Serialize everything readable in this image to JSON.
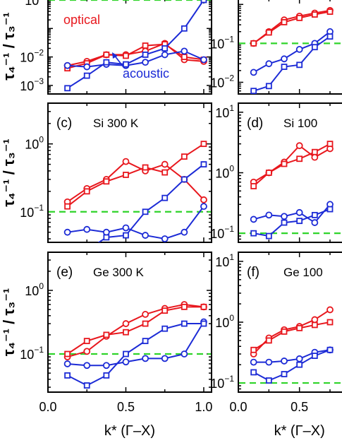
{
  "figure": {
    "x_axis_label": "k* (Γ–X)",
    "y_axis_label_main": "τ₄⁻¹ / τ₃⁻¹"
  },
  "chart_data": [
    {
      "panel": "a",
      "type": "line",
      "title": "",
      "ylabel": "τ₄⁻¹ / τ₃⁻¹",
      "xlim": [
        0.0,
        1.05
      ],
      "ylim_log10": [
        -3.3,
        0.05
      ],
      "yscale": "log",
      "y_tick_labels": [
        "10^-3",
        "10^-2",
        "10^0"
      ],
      "reference_line": 1.0,
      "annotations": [
        "optical",
        "acoustic"
      ],
      "series": [
        {
          "color": "#e8171d",
          "marker": "circle",
          "x": [
            0.125,
            0.25,
            0.375,
            0.5,
            0.625,
            0.75,
            0.875,
            1.0
          ],
          "y": [
            0.005,
            0.007,
            0.012,
            0.012,
            0.016,
            0.03,
            0.008,
            0.007
          ]
        },
        {
          "color": "#e8171d",
          "marker": "square",
          "x": [
            0.125,
            0.25,
            0.375,
            0.5,
            0.625,
            0.75,
            0.875,
            1.0
          ],
          "y": [
            0.004,
            0.006,
            0.012,
            0.011,
            0.025,
            0.028,
            0.01,
            0.008
          ]
        },
        {
          "color": "#1c2bd6",
          "marker": "circle",
          "x": [
            0.125,
            0.25,
            0.375,
            0.5,
            0.625,
            0.75,
            0.875,
            1.0
          ],
          "y": [
            0.005,
            0.0045,
            0.0055,
            0.005,
            0.0065,
            0.012,
            0.016,
            0.008
          ]
        },
        {
          "color": "#1c2bd6",
          "marker": "square",
          "x": [
            0.125,
            0.25,
            0.375,
            0.5,
            0.625,
            0.75,
            0.875,
            1.0
          ],
          "y": [
            0.0008,
            0.0022,
            0.0065,
            0.0055,
            0.012,
            0.02,
            0.1,
            1.0
          ]
        }
      ]
    },
    {
      "panel": "b",
      "type": "line",
      "title": "",
      "xlim": [
        0.0,
        1.05
      ],
      "ylim_log10": [
        -2.3,
        0.15
      ],
      "yscale": "log",
      "y_tick_labels": [
        "10^-2",
        "10^-1"
      ],
      "reference_line": 0.1,
      "series": [
        {
          "color": "#e8171d",
          "marker": "circle",
          "x": [
            0.125,
            0.25,
            0.375,
            0.5,
            0.625,
            0.75
          ],
          "y": [
            0.1,
            0.2,
            0.4,
            0.5,
            0.6,
            0.7
          ]
        },
        {
          "color": "#e8171d",
          "marker": "square",
          "x": [
            0.125,
            0.25,
            0.375,
            0.5,
            0.625,
            0.75
          ],
          "y": [
            0.1,
            0.19,
            0.35,
            0.45,
            0.55,
            0.65
          ]
        },
        {
          "color": "#1c2bd6",
          "marker": "circle",
          "x": [
            0.125,
            0.25,
            0.375,
            0.5,
            0.625,
            0.75
          ],
          "y": [
            0.018,
            0.03,
            0.04,
            0.07,
            0.1,
            0.2
          ]
        },
        {
          "color": "#1c2bd6",
          "marker": "square",
          "x": [
            0.125,
            0.25,
            0.375,
            0.5,
            0.625,
            0.75
          ],
          "y": [
            0.006,
            0.008,
            0.025,
            0.028,
            0.08,
            0.15
          ]
        }
      ]
    },
    {
      "panel": "c",
      "type": "line",
      "label": "(c)",
      "title": "Si 300 K",
      "ylabel": "τ₄⁻¹ / τ₃⁻¹",
      "xlim": [
        0.0,
        1.05
      ],
      "ylim_log10": [
        -1.45,
        0.6
      ],
      "yscale": "log",
      "y_tick_labels": [
        "10^-1",
        "10^0"
      ],
      "reference_line": 0.1,
      "series": [
        {
          "color": "#e8171d",
          "marker": "circle",
          "x": [
            0.125,
            0.25,
            0.375,
            0.5,
            0.625,
            0.75,
            0.875,
            1.0
          ],
          "y": [
            0.14,
            0.22,
            0.3,
            0.55,
            0.4,
            0.5,
            0.3,
            0.15
          ]
        },
        {
          "color": "#e8171d",
          "marker": "square",
          "x": [
            0.125,
            0.25,
            0.375,
            0.5,
            0.625,
            0.75,
            0.875,
            1.0
          ],
          "y": [
            0.12,
            0.2,
            0.28,
            0.35,
            0.45,
            0.38,
            0.65,
            1.0
          ]
        },
        {
          "color": "#1c2bd6",
          "marker": "circle",
          "x": [
            0.125,
            0.25,
            0.375,
            0.5,
            0.625,
            0.75,
            0.875,
            1.0
          ],
          "y": [
            0.05,
            0.055,
            0.05,
            0.058,
            0.045,
            0.04,
            0.05,
            0.12
          ]
        },
        {
          "color": "#1c2bd6",
          "marker": "square",
          "x": [
            0.125,
            0.25,
            0.375,
            0.5,
            0.625,
            0.75,
            0.875,
            1.0
          ],
          "y": [
            0.03,
            0.027,
            0.042,
            0.045,
            0.1,
            0.16,
            0.3,
            0.5
          ]
        }
      ]
    },
    {
      "panel": "d",
      "type": "line",
      "label": "(d)",
      "title": "Si 100",
      "xlim": [
        0.0,
        1.05
      ],
      "ylim_log10": [
        -1.15,
        1.15
      ],
      "yscale": "log",
      "y_tick_labels": [
        "10^-1",
        "10^0",
        "10^1"
      ],
      "reference_line": 0.1,
      "series": [
        {
          "color": "#e8171d",
          "marker": "circle",
          "x": [
            0.125,
            0.25,
            0.375,
            0.5,
            0.625,
            0.75
          ],
          "y": [
            0.7,
            1.0,
            1.5,
            2.8,
            1.8,
            2.5
          ]
        },
        {
          "color": "#e8171d",
          "marker": "square",
          "x": [
            0.125,
            0.25,
            0.375,
            0.5,
            0.625,
            0.75
          ],
          "y": [
            0.6,
            1.0,
            1.4,
            1.7,
            2.2,
            3.0
          ]
        },
        {
          "color": "#1c2bd6",
          "marker": "circle",
          "x": [
            0.125,
            0.25,
            0.375,
            0.5,
            0.625,
            0.75
          ],
          "y": [
            0.17,
            0.2,
            0.19,
            0.22,
            0.15,
            0.3
          ]
        },
        {
          "color": "#1c2bd6",
          "marker": "square",
          "x": [
            0.125,
            0.25,
            0.375,
            0.5,
            0.625,
            0.75
          ],
          "y": [
            0.1,
            0.09,
            0.15,
            0.16,
            0.2,
            0.25
          ]
        }
      ]
    },
    {
      "panel": "e",
      "type": "line",
      "label": "(e)",
      "title": "Ge 300 K",
      "ylabel": "τ₄⁻¹ / τ₃⁻¹",
      "xlim": [
        0.0,
        1.05
      ],
      "ylim_log10": [
        -1.6,
        0.6
      ],
      "yscale": "log",
      "y_tick_labels": [
        "10^-1",
        "10^0"
      ],
      "x_tick_labels": [
        "0.0",
        "0.5",
        "1.0"
      ],
      "xlabel": "k* (Γ–X)",
      "reference_line": 0.1,
      "series": [
        {
          "color": "#e8171d",
          "marker": "circle",
          "x": [
            0.125,
            0.25,
            0.375,
            0.5,
            0.625,
            0.75,
            0.875,
            1.0
          ],
          "y": [
            0.09,
            0.11,
            0.19,
            0.3,
            0.42,
            0.52,
            0.6,
            0.55
          ]
        },
        {
          "color": "#e8171d",
          "marker": "square",
          "x": [
            0.125,
            0.25,
            0.375,
            0.5,
            0.625,
            0.75,
            0.875,
            1.0
          ],
          "y": [
            0.1,
            0.16,
            0.2,
            0.22,
            0.3,
            0.48,
            0.55,
            0.55
          ]
        },
        {
          "color": "#1c2bd6",
          "marker": "circle",
          "x": [
            0.125,
            0.25,
            0.375,
            0.5,
            0.625,
            0.75,
            0.875,
            1.0
          ],
          "y": [
            0.07,
            0.066,
            0.066,
            0.075,
            0.085,
            0.085,
            0.1,
            0.32
          ]
        },
        {
          "color": "#1c2bd6",
          "marker": "square",
          "x": [
            0.125,
            0.25,
            0.375,
            0.5,
            0.625,
            0.75,
            0.875,
            1.0
          ],
          "y": [
            0.046,
            0.032,
            0.046,
            0.1,
            0.16,
            0.25,
            0.3,
            0.3
          ]
        }
      ]
    },
    {
      "panel": "f",
      "type": "line",
      "label": "(f)",
      "title": "Ge 100",
      "xlim": [
        0.0,
        1.05
      ],
      "ylim_log10": [
        -1.15,
        1.15
      ],
      "yscale": "log",
      "y_tick_labels": [
        "10^-1",
        "10^0",
        "10^1"
      ],
      "x_tick_labels": [
        "0.0",
        "0.5"
      ],
      "xlabel": "k* (Γ–X)",
      "reference_line": 0.1,
      "series": [
        {
          "color": "#e8171d",
          "marker": "circle",
          "x": [
            0.125,
            0.25,
            0.375,
            0.5,
            0.625,
            0.75
          ],
          "y": [
            0.3,
            0.55,
            0.75,
            0.85,
            1.1,
            1.6
          ]
        },
        {
          "color": "#e8171d",
          "marker": "square",
          "x": [
            0.125,
            0.25,
            0.375,
            0.5,
            0.625,
            0.75
          ],
          "y": [
            0.35,
            0.5,
            0.7,
            0.8,
            0.9,
            1.0
          ]
        },
        {
          "color": "#1c2bd6",
          "marker": "circle",
          "x": [
            0.125,
            0.25,
            0.375,
            0.5,
            0.625,
            0.75
          ],
          "y": [
            0.22,
            0.22,
            0.23,
            0.25,
            0.32,
            0.35
          ]
        },
        {
          "color": "#1c2bd6",
          "marker": "square",
          "x": [
            0.125,
            0.25,
            0.375,
            0.5,
            0.625,
            0.75
          ],
          "y": [
            0.15,
            0.11,
            0.14,
            0.2,
            0.28,
            0.35
          ]
        }
      ]
    }
  ]
}
